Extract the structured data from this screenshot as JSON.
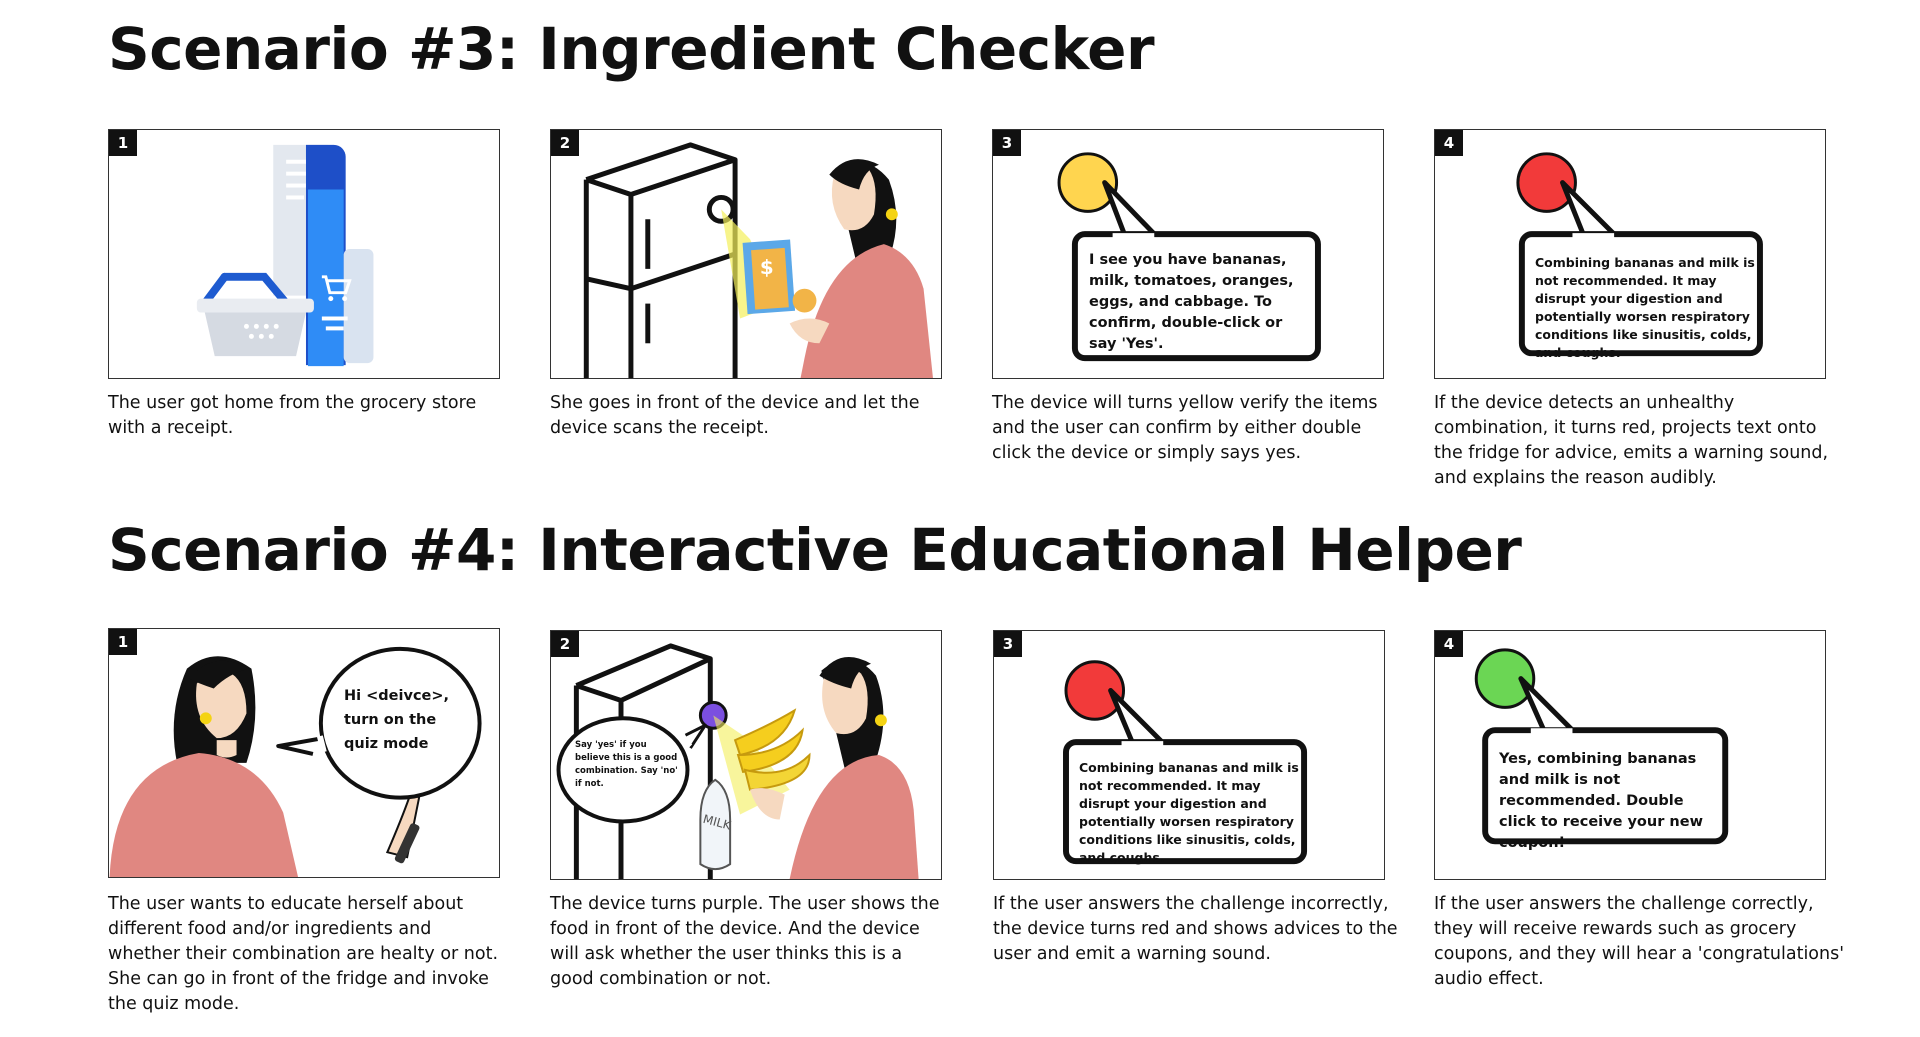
{
  "scenario3": {
    "title": "Scenario #3: Ingredient Checker",
    "panels": [
      {
        "number": "1",
        "caption": "The user got home from the grocery store with a receipt."
      },
      {
        "number": "2",
        "caption": "She goes in front of the device and let the device scans the receipt."
      },
      {
        "number": "3",
        "bubble": "I see you have bananas, milk, tomatoes, oranges, eggs, and cabbage. To confirm, double-click or say 'Yes'.",
        "light_color": "#FFD54F",
        "caption": "The device will turns yellow verify the items and the user can confirm by either double click the device or simply says yes."
      },
      {
        "number": "4",
        "bubble": "Combining bananas and milk is not recommended. It may disrupt your digestion and potentially worsen respiratory conditions like sinusitis, colds, and coughs.",
        "light_color": "#F23A3A",
        "caption": "If the device detects an unhealthy combination, it turns red, projects text onto the fridge for advice, emits a warning sound, and explains the reason audibly."
      }
    ]
  },
  "scenario4": {
    "title": "Scenario #4: Interactive Educational Helper",
    "panels": [
      {
        "number": "1",
        "bubble": "Hi <deivce>, turn on the quiz mode",
        "caption": "The user wants to educate herself about different food and/or ingredients and whether their combination are healty or not. She can go in front of the fridge and invoke the quiz mode."
      },
      {
        "number": "2",
        "bubble": "Say 'yes' if you believe this is a good combination. Say 'no' if not.",
        "light_color": "#7B4FE0",
        "caption": "The device turns purple. The user shows the food in front of the device. And the device will ask whether the user thinks this is a good combination or not."
      },
      {
        "number": "3",
        "bubble": "Combining bananas and milk is not recommended. It may disrupt your digestion and potentially worsen respiratory conditions like sinusitis, colds, and coughs.",
        "light_color": "#F23A3A",
        "caption": "If the user answers the challenge incorrectly, the device turns red and shows advices to the user and emit a warning sound."
      },
      {
        "number": "4",
        "bubble": "Yes, combining bananas and milk is not recommended. Double click to receive your new coupon!",
        "light_color": "#6BD654",
        "caption": "If the user answers the challenge correctly, they will receive rewards such as grocery coupons, and they will hear a 'congratulations' audio effect."
      }
    ]
  },
  "icons": [
    "receipt-icon",
    "shopping-basket-icon",
    "cart-icon",
    "fridge-icon",
    "woman-illustration",
    "speech-bubble-icon",
    "banana-icon",
    "milk-bottle-icon",
    "phone-icon",
    "status-light-icon"
  ]
}
